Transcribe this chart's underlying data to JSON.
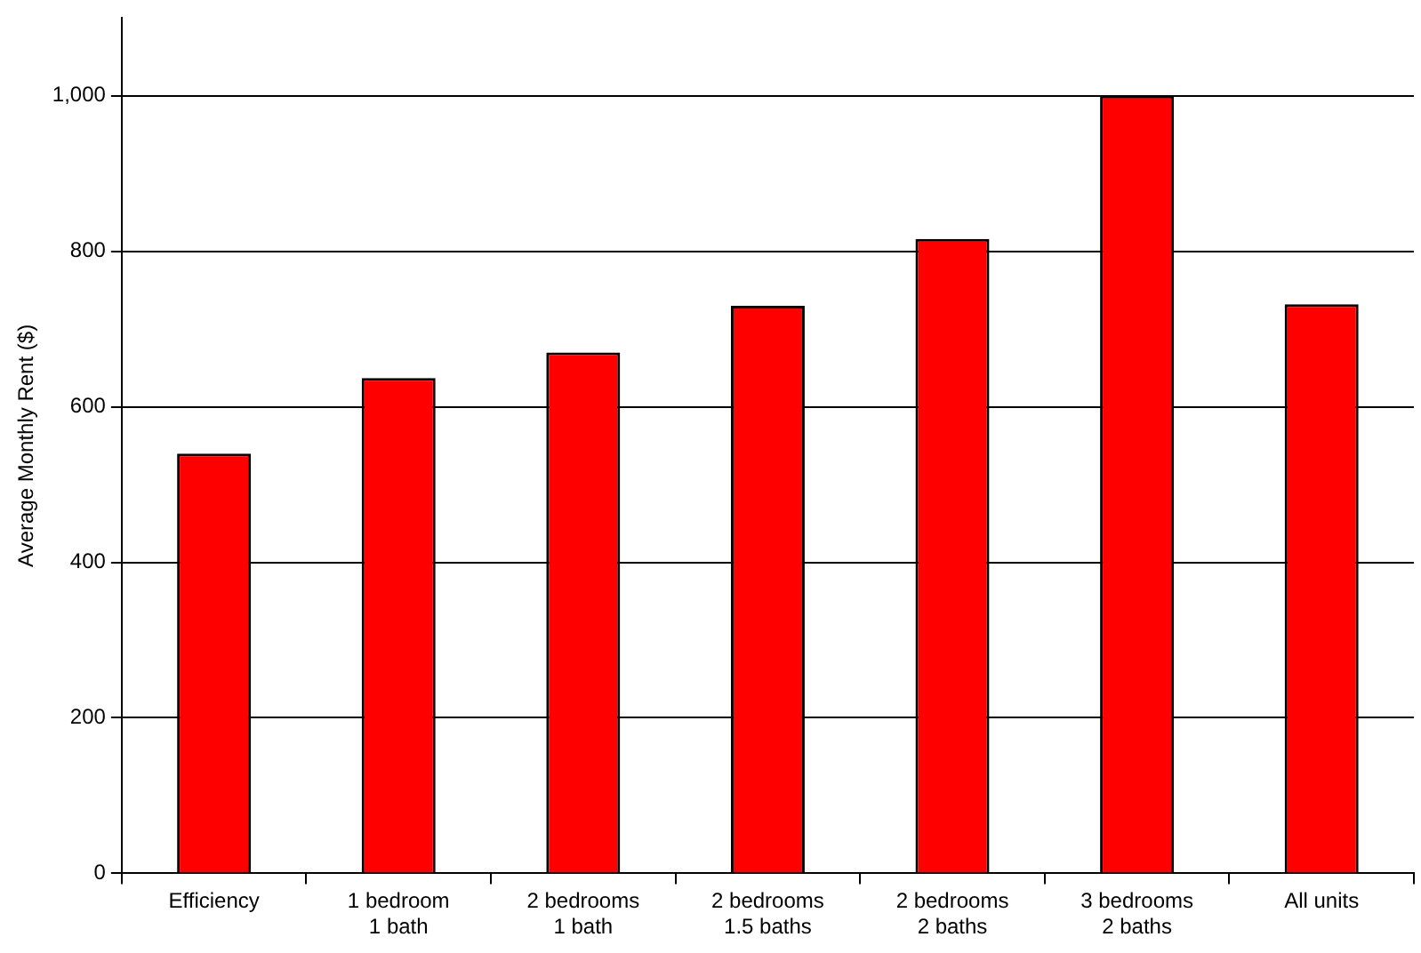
{
  "chart_data": {
    "type": "bar",
    "ylabel": "Average Monthly Rent ($)",
    "categories": [
      "Efficiency",
      "1 bedroom\n1 bath",
      "2 bedrooms\n1 bath",
      "2 bedrooms\n1.5 baths",
      "2 bedrooms\n2 baths",
      "3 bedrooms\n2 baths",
      "All units"
    ],
    "values": [
      540,
      637,
      670,
      730,
      816,
      1000,
      732
    ],
    "color": "#ff0000",
    "ylim": [
      0,
      1100
    ],
    "yticks": [
      0,
      200,
      400,
      600,
      800,
      {
        "value": 1000,
        "label": "1,000"
      }
    ],
    "grid": "y",
    "legend": false
  }
}
